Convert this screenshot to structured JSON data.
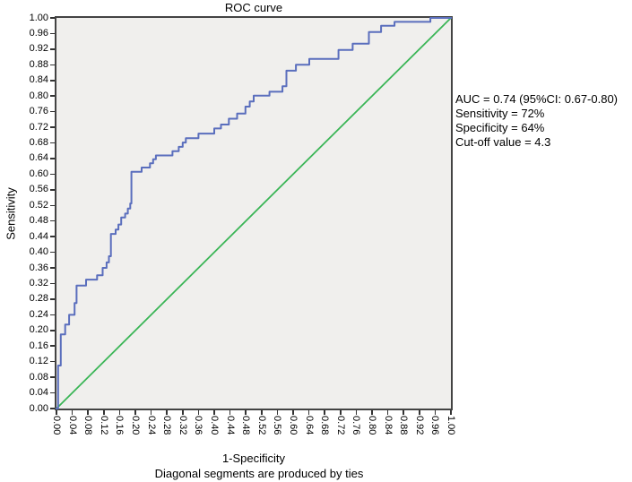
{
  "title": "ROC curve",
  "axes": {
    "x": {
      "label": "1-Specificity",
      "range": [
        0,
        1
      ],
      "ticks": [
        "0.00",
        "0.04",
        "0.08",
        "0.12",
        "0.16",
        "0.20",
        "0.24",
        "0.28",
        "0.32",
        "0.36",
        "0.40",
        "0.44",
        "0.48",
        "0.52",
        "0.56",
        "0.60",
        "0.64",
        "0.68",
        "0.72",
        "0.76",
        "0.80",
        "0.84",
        "0.88",
        "0.92",
        "0.96",
        "1.00"
      ]
    },
    "y": {
      "label": "Sensitivity",
      "range": [
        0,
        1
      ],
      "ticks": [
        "0.00",
        "0.04",
        "0.08",
        "0.12",
        "0.16",
        "0.20",
        "0.24",
        "0.28",
        "0.32",
        "0.36",
        "0.40",
        "0.44",
        "0.48",
        "0.52",
        "0.56",
        "0.60",
        "0.64",
        "0.68",
        "0.72",
        "0.76",
        "0.80",
        "0.84",
        "0.88",
        "0.92",
        "0.96",
        "1.00"
      ]
    }
  },
  "annotation": {
    "lines": [
      "AUC = 0.74 (95%CI: 0.67-0.80)",
      "Sensitivity = 72%",
      "Specificity = 64%",
      "Cut-off value = 4.3"
    ]
  },
  "footnote": "Diagonal segments are produced by ties",
  "colors": {
    "roc_curve": "#5a6ebd",
    "diagonal": "#3ab556",
    "plot_background": "#f0efed",
    "frame": "#434343",
    "tick": "#333333",
    "text": "#000000"
  },
  "chart_data": {
    "type": "line",
    "title": "ROC curve",
    "xlabel": "1-Specificity",
    "ylabel": "Sensitivity",
    "xlim": [
      0,
      1
    ],
    "ylim": [
      0,
      1
    ],
    "grid": false,
    "legend": "none",
    "stats": {
      "auc": 0.74,
      "ci_low": 0.67,
      "ci_high": 0.8,
      "sensitivity_pct": 72,
      "specificity_pct": 64,
      "cutoff_value": 4.3
    },
    "series": [
      {
        "name": "ROC curve",
        "color": "#5a6ebd",
        "points": [
          [
            0.0,
            0.0
          ],
          [
            0.004,
            0.0
          ],
          [
            0.004,
            0.11
          ],
          [
            0.011,
            0.11
          ],
          [
            0.011,
            0.19
          ],
          [
            0.022,
            0.19
          ],
          [
            0.022,
            0.215
          ],
          [
            0.032,
            0.215
          ],
          [
            0.032,
            0.24
          ],
          [
            0.046,
            0.24
          ],
          [
            0.046,
            0.27
          ],
          [
            0.051,
            0.27
          ],
          [
            0.051,
            0.315
          ],
          [
            0.075,
            0.315
          ],
          [
            0.075,
            0.33
          ],
          [
            0.103,
            0.33
          ],
          [
            0.103,
            0.341
          ],
          [
            0.117,
            0.341
          ],
          [
            0.117,
            0.36
          ],
          [
            0.127,
            0.36
          ],
          [
            0.127,
            0.374
          ],
          [
            0.133,
            0.374
          ],
          [
            0.133,
            0.39
          ],
          [
            0.138,
            0.39
          ],
          [
            0.138,
            0.447
          ],
          [
            0.15,
            0.447
          ],
          [
            0.15,
            0.458
          ],
          [
            0.157,
            0.458
          ],
          [
            0.157,
            0.471
          ],
          [
            0.164,
            0.471
          ],
          [
            0.164,
            0.489
          ],
          [
            0.174,
            0.489
          ],
          [
            0.174,
            0.499
          ],
          [
            0.181,
            0.499
          ],
          [
            0.181,
            0.512
          ],
          [
            0.187,
            0.512
          ],
          [
            0.187,
            0.525
          ],
          [
            0.19,
            0.525
          ],
          [
            0.19,
            0.606
          ],
          [
            0.216,
            0.606
          ],
          [
            0.216,
            0.617
          ],
          [
            0.237,
            0.617
          ],
          [
            0.237,
            0.628
          ],
          [
            0.245,
            0.628
          ],
          [
            0.245,
            0.638
          ],
          [
            0.252,
            0.638
          ],
          [
            0.252,
            0.648
          ],
          [
            0.294,
            0.648
          ],
          [
            0.294,
            0.659
          ],
          [
            0.31,
            0.659
          ],
          [
            0.31,
            0.67
          ],
          [
            0.32,
            0.67
          ],
          [
            0.32,
            0.681
          ],
          [
            0.328,
            0.681
          ],
          [
            0.328,
            0.692
          ],
          [
            0.36,
            0.692
          ],
          [
            0.36,
            0.704
          ],
          [
            0.4,
            0.704
          ],
          [
            0.4,
            0.717
          ],
          [
            0.417,
            0.717
          ],
          [
            0.417,
            0.727
          ],
          [
            0.437,
            0.727
          ],
          [
            0.437,
            0.742
          ],
          [
            0.458,
            0.742
          ],
          [
            0.458,
            0.755
          ],
          [
            0.479,
            0.755
          ],
          [
            0.479,
            0.773
          ],
          [
            0.49,
            0.773
          ],
          [
            0.49,
            0.786
          ],
          [
            0.5,
            0.786
          ],
          [
            0.5,
            0.801
          ],
          [
            0.54,
            0.801
          ],
          [
            0.54,
            0.811
          ],
          [
            0.573,
            0.811
          ],
          [
            0.573,
            0.825
          ],
          [
            0.583,
            0.825
          ],
          [
            0.583,
            0.865
          ],
          [
            0.607,
            0.865
          ],
          [
            0.607,
            0.88
          ],
          [
            0.641,
            0.88
          ],
          [
            0.641,
            0.895
          ],
          [
            0.715,
            0.895
          ],
          [
            0.715,
            0.918
          ],
          [
            0.751,
            0.918
          ],
          [
            0.751,
            0.934
          ],
          [
            0.792,
            0.934
          ],
          [
            0.792,
            0.964
          ],
          [
            0.823,
            0.964
          ],
          [
            0.823,
            0.98
          ],
          [
            0.857,
            0.98
          ],
          [
            0.857,
            0.99
          ],
          [
            0.948,
            0.99
          ],
          [
            0.948,
            1.0
          ],
          [
            1.0,
            1.0
          ]
        ]
      },
      {
        "name": "Reference diagonal",
        "color": "#3ab556",
        "points": [
          [
            0.0,
            0.0
          ],
          [
            1.0,
            1.0
          ]
        ]
      }
    ]
  }
}
